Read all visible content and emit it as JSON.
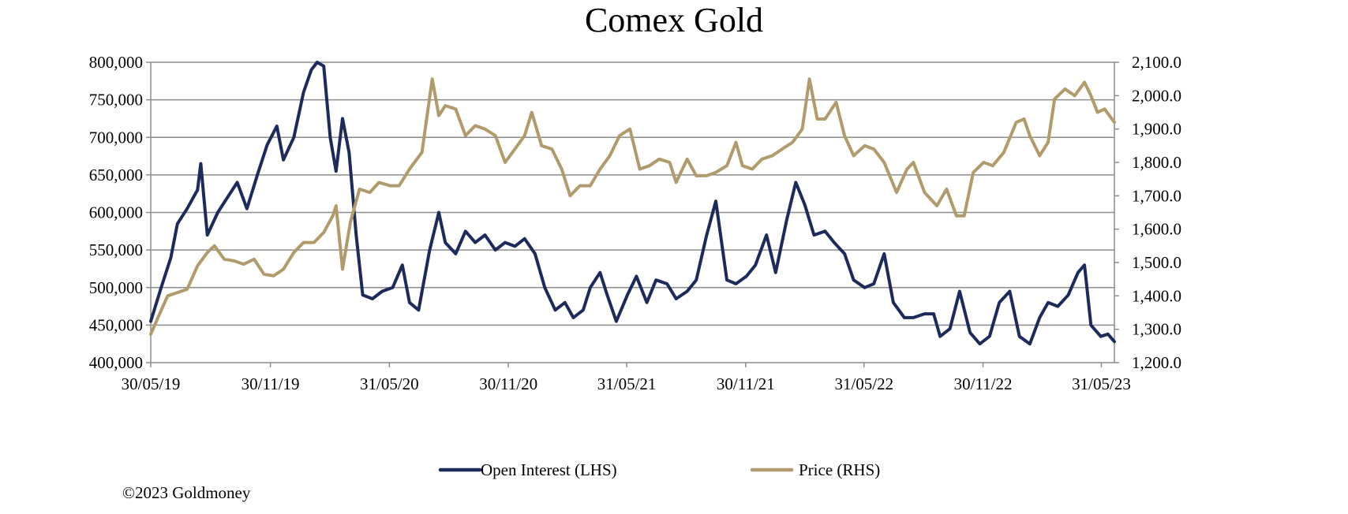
{
  "chart_data": {
    "type": "line",
    "title": "Comex Gold",
    "x_tick_labels": [
      "30/05/19",
      "30/11/19",
      "31/05/20",
      "30/11/20",
      "31/05/21",
      "30/11/21",
      "31/05/22",
      "30/11/22",
      "31/05/23"
    ],
    "x_range": [
      "2019-05-30",
      "2023-06-20"
    ],
    "y_left": {
      "range": [
        400000,
        800000
      ],
      "ticks": [
        400000,
        450000,
        500000,
        550000,
        600000,
        650000,
        700000,
        750000,
        800000
      ],
      "tick_labels": [
        "400,000",
        "450,000",
        "500,000",
        "550,000",
        "600,000",
        "650,000",
        "700,000",
        "750,000",
        "800,000"
      ]
    },
    "y_right": {
      "range": [
        1200,
        2100
      ],
      "ticks": [
        1200,
        1300,
        1400,
        1500,
        1600,
        1700,
        1800,
        1900,
        2000,
        2100
      ],
      "tick_labels": [
        "1,200.0",
        "1,300.0",
        "1,400.0",
        "1,500.0",
        "1,600.0",
        "1,700.0",
        "1,800.0",
        "1,900.0",
        "2,000.0",
        "2,100.0"
      ]
    },
    "grid": true,
    "legend_position": "bottom",
    "series": [
      {
        "name": "Open Interest (LHS)",
        "axis": "left",
        "color": "#1c2a5c",
        "points": [
          [
            "2019-05-30",
            455000
          ],
          [
            "2019-06-15",
            500000
          ],
          [
            "2019-06-30",
            540000
          ],
          [
            "2019-07-10",
            585000
          ],
          [
            "2019-07-25",
            605000
          ],
          [
            "2019-08-10",
            630000
          ],
          [
            "2019-08-15",
            665000
          ],
          [
            "2019-08-25",
            570000
          ],
          [
            "2019-09-10",
            600000
          ],
          [
            "2019-09-25",
            620000
          ],
          [
            "2019-10-10",
            640000
          ],
          [
            "2019-10-25",
            605000
          ],
          [
            "2019-11-10",
            650000
          ],
          [
            "2019-11-25",
            690000
          ],
          [
            "2019-12-10",
            715000
          ],
          [
            "2019-12-20",
            670000
          ],
          [
            "2020-01-05",
            700000
          ],
          [
            "2020-01-20",
            760000
          ],
          [
            "2020-02-01",
            790000
          ],
          [
            "2020-02-10",
            800000
          ],
          [
            "2020-02-20",
            795000
          ],
          [
            "2020-03-01",
            700000
          ],
          [
            "2020-03-10",
            655000
          ],
          [
            "2020-03-20",
            725000
          ],
          [
            "2020-03-30",
            680000
          ],
          [
            "2020-04-10",
            570000
          ],
          [
            "2020-04-20",
            490000
          ],
          [
            "2020-05-05",
            485000
          ],
          [
            "2020-05-20",
            495000
          ],
          [
            "2020-06-05",
            500000
          ],
          [
            "2020-06-20",
            530000
          ],
          [
            "2020-07-01",
            480000
          ],
          [
            "2020-07-15",
            470000
          ],
          [
            "2020-08-01",
            550000
          ],
          [
            "2020-08-15",
            600000
          ],
          [
            "2020-08-25",
            560000
          ],
          [
            "2020-09-10",
            545000
          ],
          [
            "2020-09-25",
            575000
          ],
          [
            "2020-10-10",
            560000
          ],
          [
            "2020-10-25",
            570000
          ],
          [
            "2020-11-10",
            550000
          ],
          [
            "2020-11-25",
            560000
          ],
          [
            "2020-12-10",
            555000
          ],
          [
            "2020-12-25",
            565000
          ],
          [
            "2021-01-10",
            545000
          ],
          [
            "2021-01-25",
            500000
          ],
          [
            "2021-02-10",
            470000
          ],
          [
            "2021-02-25",
            480000
          ],
          [
            "2021-03-10",
            460000
          ],
          [
            "2021-03-25",
            470000
          ],
          [
            "2021-04-05",
            500000
          ],
          [
            "2021-04-20",
            520000
          ],
          [
            "2021-05-01",
            490000
          ],
          [
            "2021-05-15",
            455000
          ],
          [
            "2021-06-01",
            490000
          ],
          [
            "2021-06-15",
            515000
          ],
          [
            "2021-07-01",
            480000
          ],
          [
            "2021-07-15",
            510000
          ],
          [
            "2021-08-01",
            505000
          ],
          [
            "2021-08-15",
            485000
          ],
          [
            "2021-09-01",
            495000
          ],
          [
            "2021-09-15",
            510000
          ],
          [
            "2021-10-01",
            570000
          ],
          [
            "2021-10-15",
            615000
          ],
          [
            "2021-11-01",
            510000
          ],
          [
            "2021-11-15",
            505000
          ],
          [
            "2021-12-01",
            515000
          ],
          [
            "2021-12-15",
            530000
          ],
          [
            "2022-01-01",
            570000
          ],
          [
            "2022-01-15",
            520000
          ],
          [
            "2022-02-01",
            590000
          ],
          [
            "2022-02-15",
            640000
          ],
          [
            "2022-03-01",
            610000
          ],
          [
            "2022-03-15",
            570000
          ],
          [
            "2022-04-01",
            575000
          ],
          [
            "2022-04-15",
            560000
          ],
          [
            "2022-05-01",
            545000
          ],
          [
            "2022-05-15",
            510000
          ],
          [
            "2022-06-01",
            500000
          ],
          [
            "2022-06-15",
            505000
          ],
          [
            "2022-07-01",
            545000
          ],
          [
            "2022-07-15",
            480000
          ],
          [
            "2022-08-01",
            460000
          ],
          [
            "2022-08-15",
            460000
          ],
          [
            "2022-09-01",
            465000
          ],
          [
            "2022-09-15",
            465000
          ],
          [
            "2022-09-25",
            435000
          ],
          [
            "2022-10-10",
            445000
          ],
          [
            "2022-10-25",
            495000
          ],
          [
            "2022-11-10",
            440000
          ],
          [
            "2022-11-25",
            425000
          ],
          [
            "2022-12-10",
            435000
          ],
          [
            "2022-12-25",
            480000
          ],
          [
            "2023-01-10",
            495000
          ],
          [
            "2023-01-25",
            435000
          ],
          [
            "2023-02-10",
            425000
          ],
          [
            "2023-02-25",
            460000
          ],
          [
            "2023-03-10",
            480000
          ],
          [
            "2023-03-25",
            475000
          ],
          [
            "2023-04-10",
            490000
          ],
          [
            "2023-04-25",
            520000
          ],
          [
            "2023-05-05",
            530000
          ],
          [
            "2023-05-15",
            450000
          ],
          [
            "2023-05-30",
            435000
          ],
          [
            "2023-06-10",
            438000
          ],
          [
            "2023-06-20",
            428000
          ]
        ]
      },
      {
        "name": "Price (RHS)",
        "axis": "right",
        "color": "#b19a6c",
        "points": [
          [
            "2019-05-30",
            1285
          ],
          [
            "2019-06-10",
            1335
          ],
          [
            "2019-06-25",
            1400
          ],
          [
            "2019-07-10",
            1410
          ],
          [
            "2019-07-25",
            1420
          ],
          [
            "2019-08-10",
            1490
          ],
          [
            "2019-08-25",
            1530
          ],
          [
            "2019-09-05",
            1550
          ],
          [
            "2019-09-20",
            1510
          ],
          [
            "2019-10-05",
            1505
          ],
          [
            "2019-10-20",
            1495
          ],
          [
            "2019-11-05",
            1510
          ],
          [
            "2019-11-20",
            1465
          ],
          [
            "2019-12-05",
            1460
          ],
          [
            "2019-12-20",
            1480
          ],
          [
            "2020-01-05",
            1530
          ],
          [
            "2020-01-20",
            1560
          ],
          [
            "2020-02-05",
            1560
          ],
          [
            "2020-02-20",
            1590
          ],
          [
            "2020-03-05",
            1640
          ],
          [
            "2020-03-10",
            1670
          ],
          [
            "2020-03-20",
            1480
          ],
          [
            "2020-04-01",
            1620
          ],
          [
            "2020-04-15",
            1720
          ],
          [
            "2020-05-01",
            1710
          ],
          [
            "2020-05-15",
            1740
          ],
          [
            "2020-06-01",
            1730
          ],
          [
            "2020-06-15",
            1730
          ],
          [
            "2020-07-01",
            1780
          ],
          [
            "2020-07-20",
            1830
          ],
          [
            "2020-08-05",
            2050
          ],
          [
            "2020-08-15",
            1940
          ],
          [
            "2020-08-25",
            1970
          ],
          [
            "2020-09-10",
            1960
          ],
          [
            "2020-09-25",
            1880
          ],
          [
            "2020-10-10",
            1910
          ],
          [
            "2020-10-25",
            1900
          ],
          [
            "2020-11-10",
            1880
          ],
          [
            "2020-11-25",
            1800
          ],
          [
            "2020-12-10",
            1840
          ],
          [
            "2020-12-25",
            1880
          ],
          [
            "2021-01-05",
            1950
          ],
          [
            "2021-01-20",
            1850
          ],
          [
            "2021-02-05",
            1840
          ],
          [
            "2021-02-20",
            1780
          ],
          [
            "2021-03-05",
            1700
          ],
          [
            "2021-03-20",
            1730
          ],
          [
            "2021-04-05",
            1730
          ],
          [
            "2021-04-20",
            1780
          ],
          [
            "2021-05-05",
            1820
          ],
          [
            "2021-05-20",
            1880
          ],
          [
            "2021-06-05",
            1900
          ],
          [
            "2021-06-20",
            1780
          ],
          [
            "2021-07-05",
            1790
          ],
          [
            "2021-07-20",
            1810
          ],
          [
            "2021-08-05",
            1800
          ],
          [
            "2021-08-15",
            1740
          ],
          [
            "2021-09-01",
            1810
          ],
          [
            "2021-09-15",
            1760
          ],
          [
            "2021-10-01",
            1760
          ],
          [
            "2021-10-15",
            1770
          ],
          [
            "2021-11-01",
            1790
          ],
          [
            "2021-11-15",
            1860
          ],
          [
            "2021-11-25",
            1790
          ],
          [
            "2021-12-10",
            1780
          ],
          [
            "2021-12-25",
            1810
          ],
          [
            "2022-01-10",
            1820
          ],
          [
            "2022-01-25",
            1840
          ],
          [
            "2022-02-10",
            1860
          ],
          [
            "2022-02-25",
            1900
          ],
          [
            "2022-03-08",
            2050
          ],
          [
            "2022-03-20",
            1930
          ],
          [
            "2022-04-01",
            1930
          ],
          [
            "2022-04-18",
            1980
          ],
          [
            "2022-05-01",
            1880
          ],
          [
            "2022-05-15",
            1820
          ],
          [
            "2022-06-01",
            1850
          ],
          [
            "2022-06-15",
            1840
          ],
          [
            "2022-07-01",
            1800
          ],
          [
            "2022-07-20",
            1710
          ],
          [
            "2022-08-05",
            1780
          ],
          [
            "2022-08-15",
            1800
          ],
          [
            "2022-09-01",
            1710
          ],
          [
            "2022-09-20",
            1670
          ],
          [
            "2022-10-05",
            1720
          ],
          [
            "2022-10-20",
            1640
          ],
          [
            "2022-11-01",
            1640
          ],
          [
            "2022-11-15",
            1770
          ],
          [
            "2022-12-01",
            1800
          ],
          [
            "2022-12-15",
            1790
          ],
          [
            "2023-01-01",
            1830
          ],
          [
            "2023-01-20",
            1920
          ],
          [
            "2023-02-01",
            1930
          ],
          [
            "2023-02-10",
            1880
          ],
          [
            "2023-02-25",
            1820
          ],
          [
            "2023-03-10",
            1860
          ],
          [
            "2023-03-20",
            1990
          ],
          [
            "2023-04-05",
            2020
          ],
          [
            "2023-04-20",
            2000
          ],
          [
            "2023-05-05",
            2040
          ],
          [
            "2023-05-15",
            2000
          ],
          [
            "2023-05-25",
            1950
          ],
          [
            "2023-06-05",
            1960
          ],
          [
            "2023-06-20",
            1920
          ]
        ]
      }
    ]
  },
  "footer": {
    "copyright": "©2023 Goldmoney"
  }
}
